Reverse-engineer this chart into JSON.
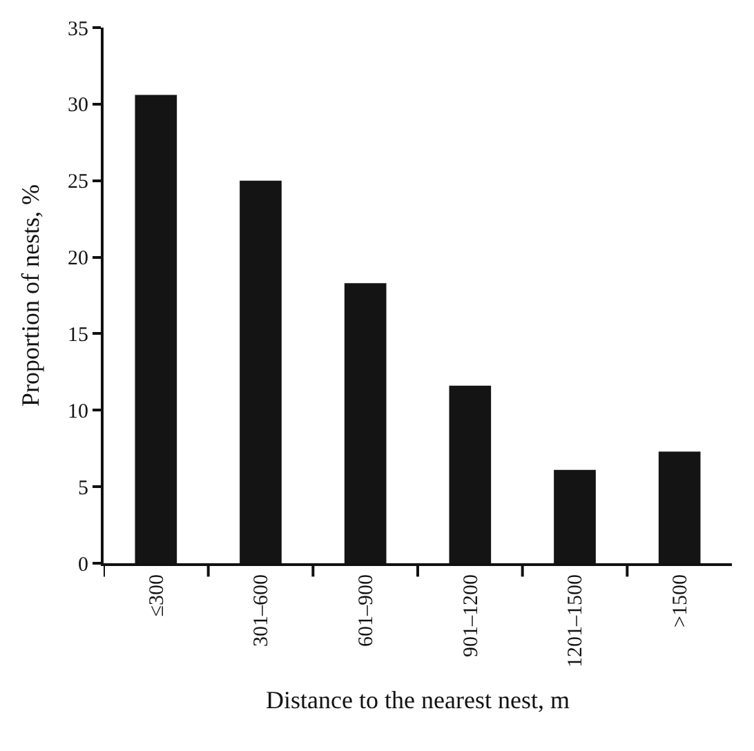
{
  "chart_data": {
    "type": "bar",
    "xlabel": "Distance to the nearest nest, m",
    "ylabel": "Proportion of nests, %",
    "categories": [
      "≤300",
      "301–600",
      "601–900",
      "901–1200",
      "1201–1500",
      ">1500"
    ],
    "values": [
      30.6,
      25.0,
      18.3,
      11.6,
      6.1,
      7.3
    ],
    "color": "#141414",
    "ylim": [
      0,
      35
    ],
    "yticks": [
      0,
      5,
      10,
      15,
      20,
      25,
      30,
      35
    ],
    "grid": false,
    "legend": false
  }
}
